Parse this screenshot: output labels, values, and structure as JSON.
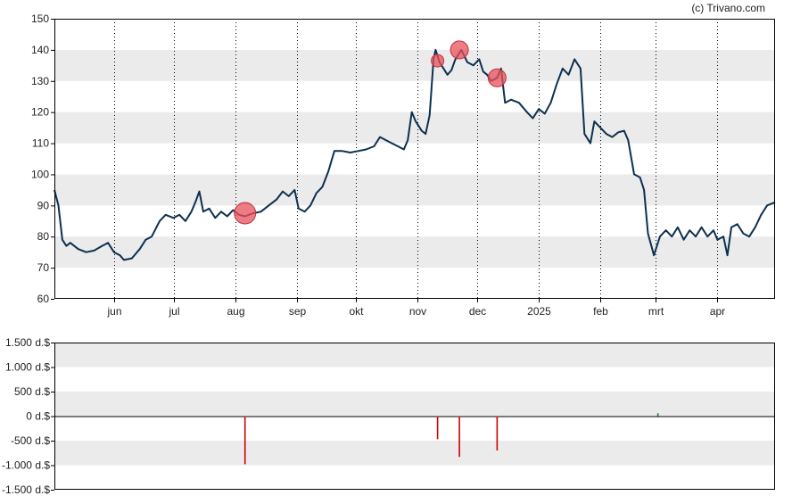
{
  "credit": "(c) Trivano.com",
  "colors": {
    "line": "#0d3050",
    "marker": "#e8505b",
    "bar_negative": "#cc0000",
    "bar_positive": "#2e7d32",
    "band": "#ebebeb",
    "axis": "#000000"
  },
  "chart_data": [
    {
      "type": "line",
      "title": "",
      "xlabel": "",
      "ylabel": "",
      "ylim": [
        60,
        150
      ],
      "yticks": [
        "150",
        "140",
        "130",
        "120",
        "110",
        "100",
        "90",
        "80",
        "70",
        "60"
      ],
      "xticks": [
        "jun",
        "jul",
        "aug",
        "sep",
        "okt",
        "nov",
        "dec",
        "2025",
        "feb",
        "mrt",
        "apr"
      ],
      "x_range": [
        "2024-05-02",
        "2025-04-30"
      ],
      "grid": "vertical dotted at month starts, horizontal alternating bands",
      "series": [
        {
          "points": [
            [
              "2024-05-02",
              95
            ],
            [
              "2024-05-04",
              90
            ],
            [
              "2024-05-06",
              79
            ],
            [
              "2024-05-08",
              77
            ],
            [
              "2024-05-10",
              78
            ],
            [
              "2024-05-14",
              76
            ],
            [
              "2024-05-18",
              75
            ],
            [
              "2024-05-22",
              75.5
            ],
            [
              "2024-05-26",
              77
            ],
            [
              "2024-05-29",
              78
            ],
            [
              "2024-06-01",
              75
            ],
            [
              "2024-06-04",
              74
            ],
            [
              "2024-06-06",
              72.5
            ],
            [
              "2024-06-10",
              73
            ],
            [
              "2024-06-14",
              76
            ],
            [
              "2024-06-17",
              79
            ],
            [
              "2024-06-20",
              80
            ],
            [
              "2024-06-24",
              85
            ],
            [
              "2024-06-27",
              87
            ],
            [
              "2024-07-01",
              86
            ],
            [
              "2024-07-04",
              87
            ],
            [
              "2024-07-07",
              85
            ],
            [
              "2024-07-10",
              88
            ],
            [
              "2024-07-12",
              91
            ],
            [
              "2024-07-14",
              94.5
            ],
            [
              "2024-07-16",
              88
            ],
            [
              "2024-07-19",
              89
            ],
            [
              "2024-07-22",
              86
            ],
            [
              "2024-07-25",
              88
            ],
            [
              "2024-07-28",
              86.5
            ],
            [
              "2024-07-31",
              88.5
            ],
            [
              "2024-08-03",
              87
            ],
            [
              "2024-08-06",
              86.5
            ],
            [
              "2024-08-10",
              87.5
            ],
            [
              "2024-08-14",
              88
            ],
            [
              "2024-08-18",
              90
            ],
            [
              "2024-08-22",
              92
            ],
            [
              "2024-08-25",
              94.5
            ],
            [
              "2024-08-28",
              93
            ],
            [
              "2024-08-31",
              95
            ],
            [
              "2024-09-02",
              89
            ],
            [
              "2024-09-05",
              88
            ],
            [
              "2024-09-08",
              90
            ],
            [
              "2024-09-11",
              94
            ],
            [
              "2024-09-14",
              96
            ],
            [
              "2024-09-17",
              101
            ],
            [
              "2024-09-20",
              107.5
            ],
            [
              "2024-09-24",
              107.5
            ],
            [
              "2024-09-28",
              107
            ],
            [
              "2024-10-02",
              107.5
            ],
            [
              "2024-10-06",
              108
            ],
            [
              "2024-10-10",
              109
            ],
            [
              "2024-10-13",
              112
            ],
            [
              "2024-10-16",
              111
            ],
            [
              "2024-10-19",
              110
            ],
            [
              "2024-10-22",
              109
            ],
            [
              "2024-10-25",
              108
            ],
            [
              "2024-10-27",
              111
            ],
            [
              "2024-10-29",
              120
            ],
            [
              "2024-10-31",
              117
            ],
            [
              "2024-11-03",
              114
            ],
            [
              "2024-11-05",
              113
            ],
            [
              "2024-11-07",
              119
            ],
            [
              "2024-11-09",
              137
            ],
            [
              "2024-11-10",
              140
            ],
            [
              "2024-11-12",
              136
            ],
            [
              "2024-11-14",
              134
            ],
            [
              "2024-11-16",
              132
            ],
            [
              "2024-11-18",
              133.5
            ],
            [
              "2024-11-20",
              137
            ],
            [
              "2024-11-23",
              140
            ],
            [
              "2024-11-26",
              136
            ],
            [
              "2024-11-29",
              135
            ],
            [
              "2024-12-02",
              137
            ],
            [
              "2024-12-04",
              133
            ],
            [
              "2024-12-06",
              132
            ],
            [
              "2024-12-08",
              130
            ],
            [
              "2024-12-11",
              131
            ],
            [
              "2024-12-13",
              134
            ],
            [
              "2024-12-15",
              123
            ],
            [
              "2024-12-18",
              124
            ],
            [
              "2024-12-22",
              123
            ],
            [
              "2024-12-26",
              120
            ],
            [
              "2024-12-29",
              118
            ],
            [
              "2025-01-01",
              121
            ],
            [
              "2025-01-04",
              119.5
            ],
            [
              "2025-01-07",
              123
            ],
            [
              "2025-01-10",
              129
            ],
            [
              "2025-01-13",
              134
            ],
            [
              "2025-01-16",
              132
            ],
            [
              "2025-01-19",
              137
            ],
            [
              "2025-01-22",
              134
            ],
            [
              "2025-01-24",
              113
            ],
            [
              "2025-01-27",
              110
            ],
            [
              "2025-01-29",
              117
            ],
            [
              "2025-02-01",
              115
            ],
            [
              "2025-02-04",
              113
            ],
            [
              "2025-02-07",
              112
            ],
            [
              "2025-02-10",
              113.5
            ],
            [
              "2025-02-13",
              114
            ],
            [
              "2025-02-15",
              111
            ],
            [
              "2025-02-18",
              100
            ],
            [
              "2025-02-21",
              99
            ],
            [
              "2025-02-23",
              95
            ],
            [
              "2025-02-25",
              81
            ],
            [
              "2025-02-28",
              74
            ],
            [
              "2025-03-03",
              80
            ],
            [
              "2025-03-06",
              82
            ],
            [
              "2025-03-09",
              80
            ],
            [
              "2025-03-12",
              83
            ],
            [
              "2025-03-15",
              79
            ],
            [
              "2025-03-18",
              82
            ],
            [
              "2025-03-21",
              80
            ],
            [
              "2025-03-24",
              83
            ],
            [
              "2025-03-27",
              80
            ],
            [
              "2025-03-30",
              82
            ],
            [
              "2025-04-01",
              79
            ],
            [
              "2025-04-04",
              80
            ],
            [
              "2025-04-06",
              74
            ],
            [
              "2025-04-08",
              83
            ],
            [
              "2025-04-11",
              84
            ],
            [
              "2025-04-14",
              81
            ],
            [
              "2025-04-17",
              80
            ],
            [
              "2025-04-20",
              83
            ],
            [
              "2025-04-23",
              87
            ],
            [
              "2025-04-26",
              90
            ],
            [
              "2025-04-30",
              91
            ]
          ]
        }
      ],
      "markers": [
        {
          "date": "2024-08-06",
          "value": 87.5,
          "size": "large"
        },
        {
          "date": "2024-11-11",
          "value": 136.5,
          "size": "small"
        },
        {
          "date": "2024-11-22",
          "value": 140,
          "size": "medium"
        },
        {
          "date": "2024-12-11",
          "value": 131,
          "size": "medium"
        }
      ]
    },
    {
      "type": "bar",
      "title": "",
      "xlabel": "",
      "ylabel": "",
      "unit": "d.$",
      "ylim": [
        -1500,
        1500
      ],
      "yticks": [
        "1.500 d.$",
        "1.000 d.$",
        "500 d.$",
        "0 d.$",
        "-500 d.$",
        "-1.000 d.$",
        "-1.500 d.$"
      ],
      "bars": [
        {
          "date": "2024-08-06",
          "value": -980
        },
        {
          "date": "2024-11-11",
          "value": -470
        },
        {
          "date": "2024-11-22",
          "value": -830
        },
        {
          "date": "2024-12-11",
          "value": -700
        },
        {
          "date": "2025-03-02",
          "value": 60
        }
      ]
    }
  ]
}
